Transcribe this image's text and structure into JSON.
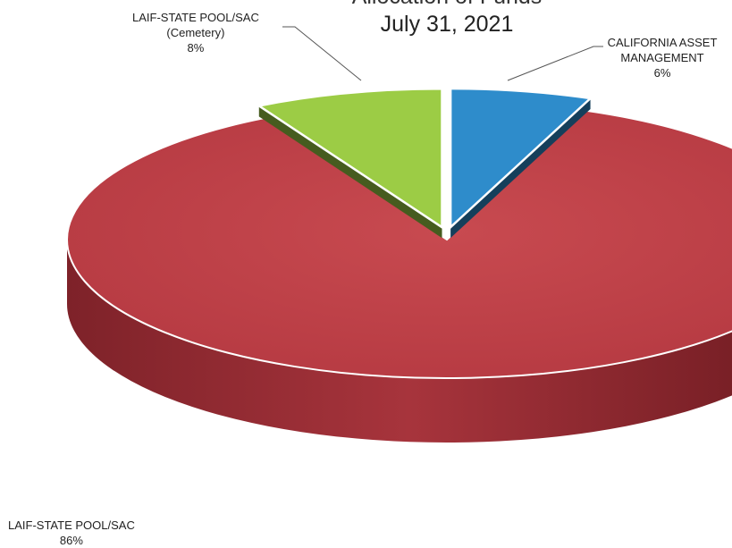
{
  "chart_data": {
    "type": "pie",
    "title_lines": [
      "Allocation of Funds",
      "July 31, 2021"
    ],
    "slices": [
      {
        "label_lines": [
          "LAIF-STATE POOL/SAC"
        ],
        "percent_label": "86%",
        "value": 86,
        "color": "#c0444a",
        "exploded": false
      },
      {
        "label_lines": [
          "LAIF-STATE POOL/SAC",
          "(Cemetery)"
        ],
        "percent_label": "8%",
        "value": 8,
        "color": "#9ccc45",
        "exploded": true
      },
      {
        "label_lines": [
          "CALIFORNIA ASSET",
          "MANAGEMENT"
        ],
        "percent_label": "6%",
        "value": 6,
        "color": "#2e8ccb",
        "exploded": true
      }
    ],
    "style": "3d",
    "legend": "none (labels placed beside slices with leader lines)"
  }
}
